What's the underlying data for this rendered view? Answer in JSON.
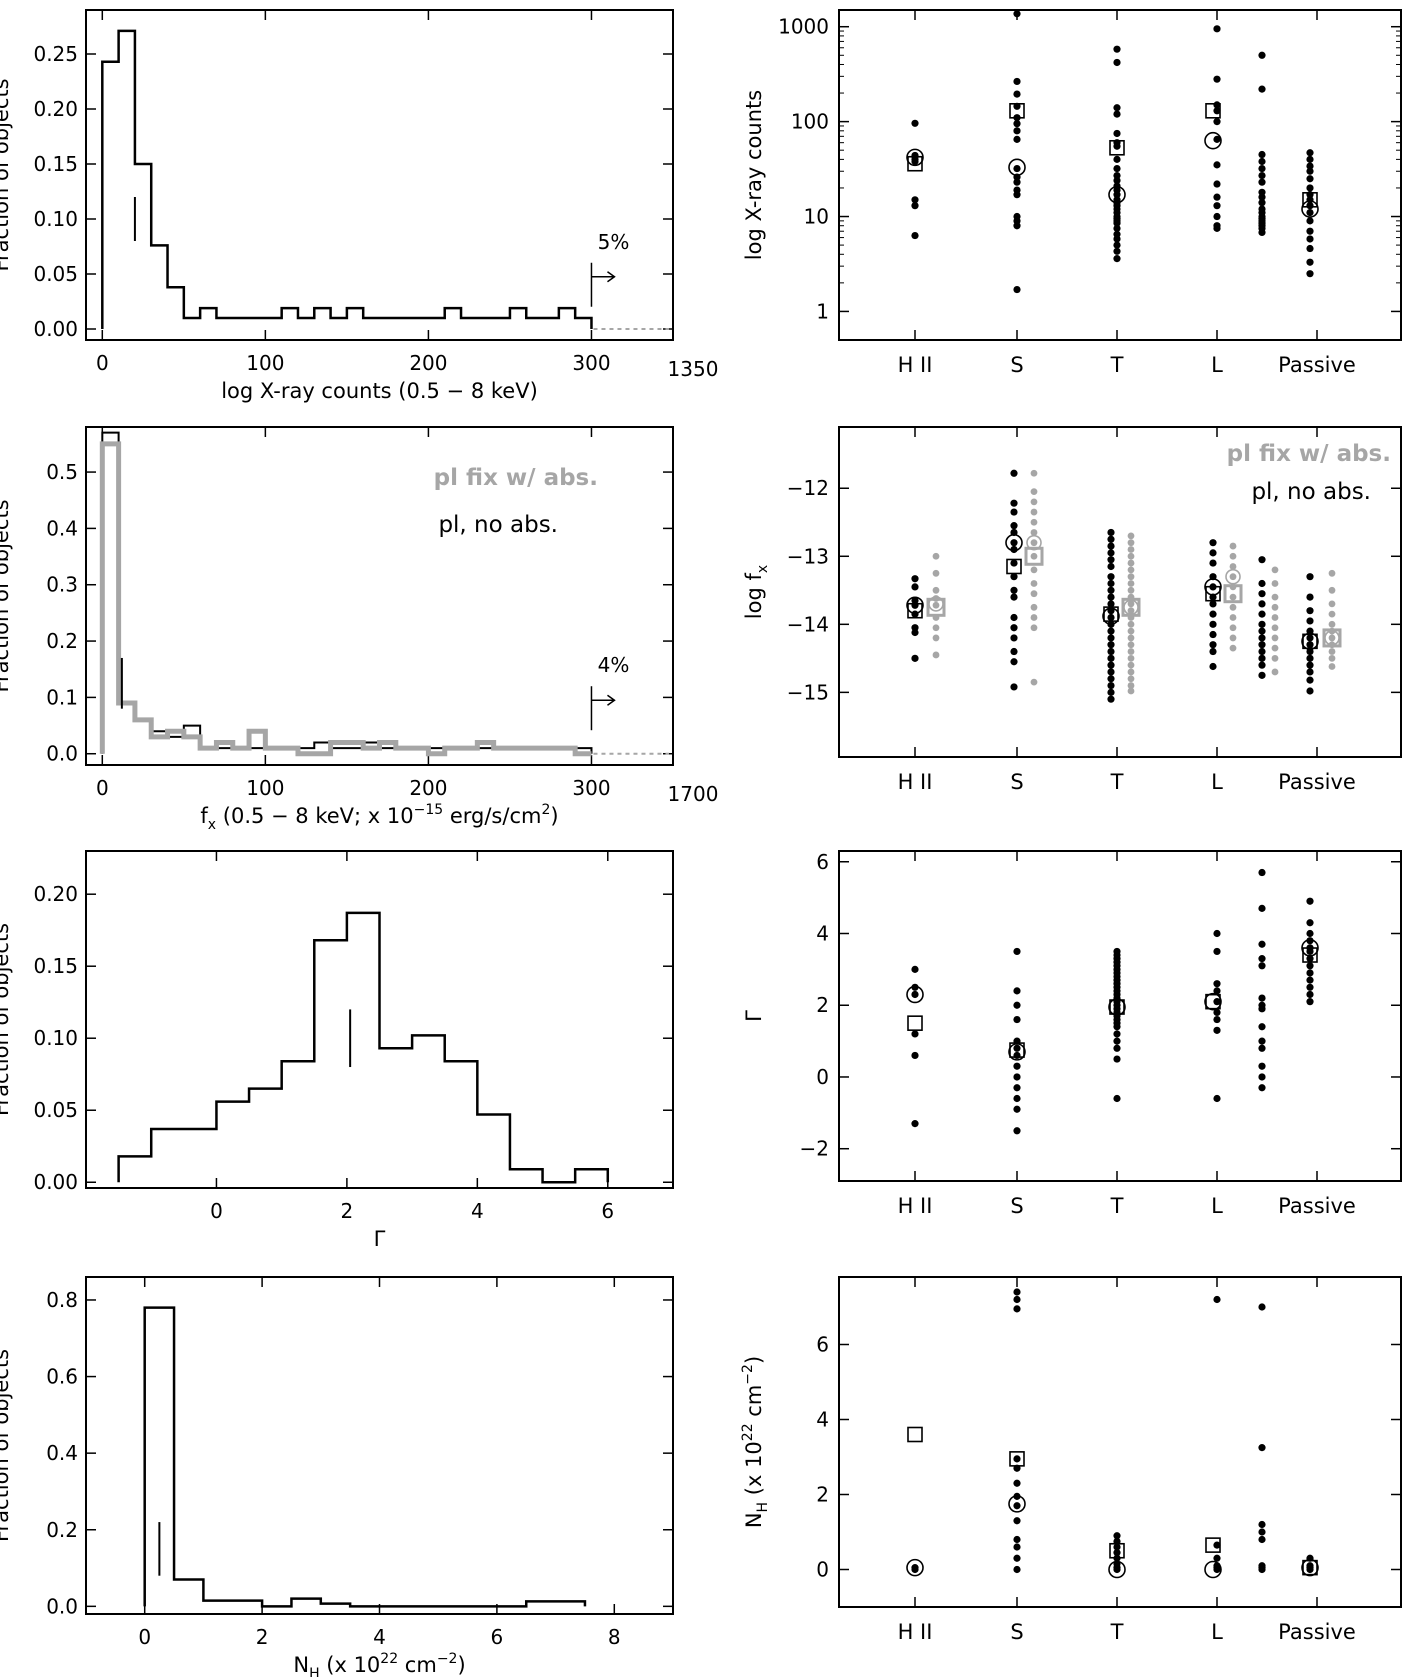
{
  "figure": {
    "ylabel_fraction": "Fraction of objects",
    "categories": [
      "H II",
      "S",
      "T",
      "L",
      "Passive"
    ],
    "colors": {
      "black": "#000000",
      "gray": "#a6a6a6",
      "white": "#ffffff"
    }
  },
  "chart_data": [
    {
      "id": "counts-hist",
      "type": "bar",
      "title": "",
      "xlabel": "log X-ray counts (0.5 − 8 keV)",
      "ylabel": "Fraction of objects",
      "xlim": [
        -10,
        350
      ],
      "ylim": [
        -0.01,
        0.29
      ],
      "xticks": [
        0,
        100,
        200,
        300
      ],
      "yticks": [
        0.0,
        0.05,
        0.1,
        0.15,
        0.2,
        0.25
      ],
      "extra_tick_label": "1350",
      "bin_edges": [
        0,
        10,
        20,
        30,
        40,
        50,
        60,
        70,
        80,
        90,
        100,
        110,
        120,
        130,
        140,
        150,
        160,
        170,
        180,
        190,
        200,
        210,
        220,
        230,
        240,
        250,
        260,
        270,
        280,
        290,
        300
      ],
      "values": [
        0.243,
        0.271,
        0.15,
        0.076,
        0.038,
        0.01,
        0.019,
        0.01,
        0.01,
        0.01,
        0.01,
        0.019,
        0.01,
        0.019,
        0.01,
        0.019,
        0.01,
        0.01,
        0.01,
        0.01,
        0.01,
        0.019,
        0.01,
        0.01,
        0.01,
        0.019,
        0.01,
        0.01,
        0.019,
        0.01
      ],
      "median_marker": {
        "x": 20,
        "y_low": 0.08,
        "y_high": 0.12
      },
      "overflow": {
        "x": 300,
        "label": "5%"
      }
    },
    {
      "id": "flux-hist",
      "type": "bar",
      "title": "",
      "xlabel_parts": [
        "f",
        "x",
        " (0.5 − 8 keV; x 10",
        "−15",
        " erg/s/cm",
        "2",
        ")"
      ],
      "ylabel": "Fraction of objects",
      "xlim": [
        -10,
        350
      ],
      "ylim": [
        -0.02,
        0.58
      ],
      "xticks": [
        0,
        100,
        200,
        300
      ],
      "yticks": [
        0.0,
        0.1,
        0.2,
        0.3,
        0.4,
        0.5
      ],
      "extra_tick_label": "1700",
      "legend": [
        "pl fix w/ abs.",
        "pl, no abs."
      ],
      "bin_edges": [
        0,
        10,
        20,
        30,
        40,
        50,
        60,
        70,
        80,
        90,
        100,
        110,
        120,
        130,
        140,
        150,
        160,
        170,
        180,
        190,
        200,
        210,
        220,
        230,
        240,
        250,
        260,
        270,
        280,
        290,
        300
      ],
      "series": [
        {
          "name": "pl, no abs.",
          "color": "black",
          "values": [
            0.57,
            0.09,
            0.06,
            0.04,
            0.03,
            0.05,
            0.01,
            0.01,
            0.01,
            0.01,
            0.01,
            0.01,
            0.01,
            0.02,
            0.01,
            0.01,
            0.02,
            0.01,
            0.01,
            0.01,
            0.01,
            0.01,
            0.01,
            0.01,
            0.01,
            0.01,
            0.01,
            0.01,
            0.01,
            0.01
          ]
        },
        {
          "name": "pl fix w/ abs.",
          "color": "gray",
          "values": [
            0.55,
            0.09,
            0.06,
            0.03,
            0.04,
            0.03,
            0.01,
            0.02,
            0.01,
            0.04,
            0.01,
            0.01,
            0.0,
            0.0,
            0.02,
            0.02,
            0.01,
            0.02,
            0.01,
            0.01,
            0.0,
            0.01,
            0.01,
            0.02,
            0.01,
            0.01,
            0.01,
            0.01,
            0.01,
            0.0
          ]
        }
      ],
      "median_marker": {
        "x": 12,
        "y_low": 0.08,
        "y_high": 0.17
      },
      "overflow": {
        "x": 300,
        "label": "4%"
      }
    },
    {
      "id": "gamma-hist",
      "type": "bar",
      "title": "",
      "xlabel": "Γ",
      "ylabel": "Fraction of objects",
      "xlim": [
        -2,
        7
      ],
      "ylim": [
        -0.004,
        0.23
      ],
      "xticks": [
        0,
        2,
        4,
        6
      ],
      "yticks": [
        0.0,
        0.05,
        0.1,
        0.15,
        0.2
      ],
      "bin_edges": [
        -1.5,
        -1.0,
        -0.5,
        0.0,
        0.5,
        1.0,
        1.5,
        2.0,
        2.5,
        3.0,
        3.5,
        4.0,
        4.5,
        5.0,
        5.5,
        6.0
      ],
      "values": [
        0.018,
        0.037,
        0.037,
        0.056,
        0.065,
        0.084,
        0.168,
        0.187,
        0.093,
        0.102,
        0.084,
        0.047,
        0.009,
        0.0,
        0.009
      ],
      "median_marker": {
        "x": 2.05,
        "y_low": 0.08,
        "y_high": 0.12
      }
    },
    {
      "id": "nh-hist",
      "type": "bar",
      "title": "",
      "xlabel_parts": [
        "N",
        "H",
        " (x 10",
        "22",
        " cm",
        "−2",
        ")"
      ],
      "ylabel": "Fraction of objects",
      "xlim": [
        -1,
        9
      ],
      "ylim": [
        -0.02,
        0.86
      ],
      "xticks": [
        0,
        2,
        4,
        6,
        8
      ],
      "yticks": [
        0.0,
        0.2,
        0.4,
        0.6,
        0.8
      ],
      "bin_edges": [
        0.0,
        0.5,
        1.0,
        1.5,
        2.0,
        2.5,
        3.0,
        3.5,
        4.0,
        4.5,
        5.0,
        5.5,
        6.0,
        6.5,
        7.0,
        7.5
      ],
      "values": [
        0.78,
        0.07,
        0.015,
        0.015,
        0.0,
        0.02,
        0.007,
        0.0,
        0.0,
        0.0,
        0.0,
        0.0,
        0.0,
        0.013,
        0.013
      ],
      "median_marker": {
        "x": 0.25,
        "y_low": 0.08,
        "y_high": 0.22
      }
    },
    {
      "id": "counts-class",
      "type": "scatter",
      "title": "",
      "xlabel": "",
      "ylabel": "log X-ray counts",
      "yscale": "log",
      "ylim": [
        0.5,
        1500
      ],
      "yticks": [
        1,
        10,
        100,
        1000
      ],
      "categories": [
        "H II",
        "S",
        "T",
        "L",
        "Passive"
      ],
      "points": [
        [
          96,
          44,
          43,
          40,
          38,
          15,
          13,
          6.3
        ],
        [
          1370,
          265,
          195,
          145,
          110,
          95,
          80,
          65,
          32,
          26,
          23,
          19,
          17,
          10,
          9,
          8,
          1.7
        ],
        [
          580,
          420,
          140,
          120,
          75,
          60,
          55,
          40,
          32,
          27,
          24,
          21,
          19,
          17,
          15,
          14,
          13,
          12,
          11,
          10,
          9.5,
          9,
          8.5,
          7.5,
          6.5,
          5.8,
          5,
          4.3,
          3.6
        ],
        [
          950,
          280,
          150,
          130,
          100,
          65,
          35,
          22,
          16,
          13,
          10,
          8,
          7.5
        ],
        [
          500,
          220,
          45,
          38,
          32,
          27,
          23,
          18,
          16,
          14,
          12,
          11,
          10,
          9.5,
          9,
          8.5,
          8,
          7.5,
          6.8
        ],
        [
          47,
          40,
          34,
          30,
          25,
          20,
          17,
          15,
          13,
          11,
          9,
          7,
          5.8,
          4.6,
          3.3,
          2.5
        ]
      ],
      "squares": [
        36,
        130,
        53,
        130,
        15
      ],
      "circles": [
        42,
        33,
        17,
        63,
        12
      ]
    },
    {
      "id": "flux-class",
      "type": "scatter",
      "title": "",
      "xlabel": "",
      "ylabel_parts": [
        "log f",
        "x"
      ],
      "ylim": [
        -15.95,
        -11.1
      ],
      "yticks": [
        -15,
        -14,
        -13,
        -12
      ],
      "categories": [
        "H II",
        "S",
        "T",
        "L",
        "Passive"
      ],
      "legend": [
        "pl fix w/ abs.",
        "pl, no abs."
      ],
      "points": [
        [
          -13.33,
          -13.45,
          -13.65,
          -13.72,
          -13.85,
          -14.05,
          -14.12,
          -14.5
        ],
        [
          -11.78,
          -12.22,
          -12.35,
          -12.55,
          -12.65,
          -12.8,
          -12.9,
          -13.1,
          -13.3,
          -13.5,
          -13.6,
          -13.9,
          -14.05,
          -14.2,
          -14.4,
          -14.55,
          -14.92
        ],
        [
          -12.65,
          -12.75,
          -12.85,
          -12.95,
          -13.05,
          -13.15,
          -13.3,
          -13.4,
          -13.5,
          -13.6,
          -13.7,
          -13.8,
          -13.9,
          -14.0,
          -14.1,
          -14.2,
          -14.3,
          -14.4,
          -14.5,
          -14.6,
          -14.7,
          -14.8,
          -14.9,
          -15.0,
          -15.1
        ],
        [
          -12.8,
          -12.95,
          -13.1,
          -13.3,
          -13.45,
          -13.6,
          -13.7,
          -13.85,
          -14.0,
          -14.15,
          -14.3,
          -14.4,
          -14.62
        ],
        [
          -13.05,
          -13.4,
          -13.55,
          -13.7,
          -13.85,
          -14.0,
          -14.1,
          -14.2,
          -14.3,
          -14.4,
          -14.5,
          -14.6,
          -14.75
        ],
        [
          -13.3,
          -13.6,
          -13.8,
          -13.95,
          -14.1,
          -14.2,
          -14.3,
          -14.4,
          -14.5,
          -14.6,
          -14.7,
          -14.82,
          -14.98
        ]
      ],
      "gray_points": [
        [
          -13.0,
          -13.25,
          -13.5,
          -13.62,
          -13.72,
          -13.9,
          -14.05,
          -14.2,
          -14.45
        ],
        [
          -11.78,
          -12.05,
          -12.2,
          -12.35,
          -12.5,
          -12.65,
          -12.8,
          -13.0,
          -13.2,
          -13.4,
          -13.55,
          -13.75,
          -13.9,
          -14.05,
          -14.85
        ],
        [
          -12.7,
          -12.8,
          -12.9,
          -13.0,
          -13.1,
          -13.2,
          -13.3,
          -13.4,
          -13.5,
          -13.6,
          -13.7,
          -13.8,
          -13.9,
          -14.0,
          -14.1,
          -14.2,
          -14.3,
          -14.4,
          -14.5,
          -14.6,
          -14.7,
          -14.8,
          -14.9,
          -14.98
        ],
        [
          -12.85,
          -13.0,
          -13.15,
          -13.3,
          -13.45,
          -13.6,
          -13.75,
          -13.9,
          -14.05,
          -14.2,
          -14.35
        ],
        [
          -13.2,
          -13.4,
          -13.6,
          -13.75,
          -13.9,
          -14.05,
          -14.2,
          -14.35,
          -14.5,
          -14.7
        ],
        [
          -13.25,
          -13.5,
          -13.7,
          -13.85,
          -14.0,
          -14.1,
          -14.2,
          -14.3,
          -14.4,
          -14.5,
          -14.62
        ]
      ],
      "squares": [
        -13.8,
        -13.15,
        -13.85,
        -13.55,
        -14.25
      ],
      "circles": [
        -13.72,
        -12.8,
        -13.88,
        -13.45,
        -14.25
      ],
      "gray_squares": [
        -13.75,
        -13.0,
        -13.75,
        -13.55,
        -14.2
      ],
      "gray_circles": [
        -13.7,
        -12.8,
        -13.75,
        -13.3,
        -14.2
      ]
    },
    {
      "id": "gamma-class",
      "type": "scatter",
      "title": "",
      "xlabel": "",
      "ylabel": "Γ",
      "ylim": [
        -2.9,
        6.3
      ],
      "yticks": [
        -2,
        0,
        2,
        4,
        6
      ],
      "categories": [
        "H II",
        "S",
        "T",
        "L",
        "Passive"
      ],
      "points": [
        [
          3.0,
          2.5,
          2.3,
          1.2,
          0.6,
          -1.3
        ],
        [
          3.5,
          2.4,
          2.0,
          1.6,
          1.0,
          0.8,
          0.6,
          0.3,
          0.0,
          -0.3,
          -0.6,
          -0.9,
          -1.5
        ],
        [
          3.5,
          3.4,
          3.3,
          3.2,
          3.1,
          3.0,
          2.9,
          2.8,
          2.7,
          2.6,
          2.5,
          2.4,
          2.3,
          2.2,
          2.1,
          2.0,
          1.9,
          1.8,
          1.7,
          1.6,
          1.5,
          1.4,
          1.2,
          1.0,
          0.8,
          0.5,
          -0.6
        ],
        [
          4.0,
          3.5,
          2.6,
          2.4,
          2.1,
          1.8,
          1.6,
          1.3,
          -0.6
        ],
        [
          5.7,
          4.7,
          3.7,
          3.3,
          3.1,
          2.2,
          2.0,
          1.9,
          1.4,
          1.0,
          0.8,
          0.3,
          0.0,
          -0.3
        ],
        [
          4.9,
          4.3,
          4.0,
          3.8,
          3.6,
          3.5,
          3.3,
          3.1,
          2.9,
          2.7,
          2.5,
          2.3,
          2.1
        ]
      ],
      "squares": [
        1.5,
        0.75,
        1.95,
        2.1,
        3.4
      ],
      "circles": [
        2.3,
        0.7,
        1.95,
        2.1,
        3.6
      ]
    },
    {
      "id": "nh-class",
      "type": "scatter",
      "title": "",
      "xlabel": "",
      "ylabel_parts": [
        "N",
        "H",
        " (x 10",
        "22",
        " cm",
        "−2",
        ")"
      ],
      "ylim": [
        -1.0,
        7.8
      ],
      "yticks": [
        0,
        2,
        4,
        6
      ],
      "categories": [
        "H II",
        "S",
        "T",
        "L",
        "Passive"
      ],
      "points": [
        [
          0.05,
          0.0
        ],
        [
          7.4,
          7.2,
          6.95,
          2.95,
          2.7,
          2.3,
          1.95,
          1.7,
          1.3,
          0.8,
          0.6,
          0.3,
          0.0
        ],
        [
          0.9,
          0.75,
          0.6,
          0.45,
          0.3,
          0.15,
          0.05,
          0.0
        ],
        [
          7.2,
          0.65,
          0.3,
          0.1,
          0.05,
          0.0
        ],
        [
          7.0,
          3.25,
          1.2,
          1.0,
          0.8,
          0.1,
          0.05,
          0.0
        ],
        [
          0.3,
          0.1,
          0.05,
          0.0
        ]
      ],
      "squares": [
        3.6,
        2.95,
        0.5,
        0.65,
        0.05
      ],
      "circles": [
        0.05,
        1.75,
        0.0,
        0.0,
        0.05
      ]
    }
  ]
}
